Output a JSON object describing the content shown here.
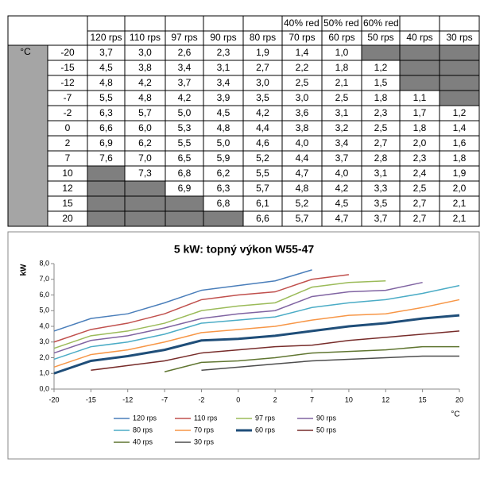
{
  "table": {
    "unit": "°C",
    "group_headers": [
      null,
      null,
      null,
      null,
      null,
      "40% red",
      "50% red",
      "60% red",
      null,
      null
    ],
    "columns": [
      "120 rps",
      "110 rps",
      "97 rps",
      "90 rps",
      "80 rps",
      "70 rps",
      "60 rps",
      "50 rps",
      "40 rps",
      "30 rps"
    ],
    "rows": [
      {
        "temp": "-20",
        "cells": [
          "3,7",
          "3,0",
          "2,6",
          "2,3",
          "1,9",
          "1,4",
          "1,0",
          null,
          null,
          null
        ]
      },
      {
        "temp": "-15",
        "cells": [
          "4,5",
          "3,8",
          "3,4",
          "3,1",
          "2,7",
          "2,2",
          "1,8",
          "1,2",
          null,
          null
        ]
      },
      {
        "temp": "-12",
        "cells": [
          "4,8",
          "4,2",
          "3,7",
          "3,4",
          "3,0",
          "2,5",
          "2,1",
          "1,5",
          null,
          null
        ]
      },
      {
        "temp": "-7",
        "cells": [
          "5,5",
          "4,8",
          "4,2",
          "3,9",
          "3,5",
          "3,0",
          "2,5",
          "1,8",
          "1,1",
          null
        ]
      },
      {
        "temp": "-2",
        "cells": [
          "6,3",
          "5,7",
          "5,0",
          "4,5",
          "4,2",
          "3,6",
          "3,1",
          "2,3",
          "1,7",
          "1,2"
        ]
      },
      {
        "temp": "0",
        "cells": [
          "6,6",
          "6,0",
          "5,3",
          "4,8",
          "4,4",
          "3,8",
          "3,2",
          "2,5",
          "1,8",
          "1,4"
        ]
      },
      {
        "temp": "2",
        "cells": [
          "6,9",
          "6,2",
          "5,5",
          "5,0",
          "4,6",
          "4,0",
          "3,4",
          "2,7",
          "2,0",
          "1,6"
        ]
      },
      {
        "temp": "7",
        "cells": [
          "7,6",
          "7,0",
          "6,5",
          "5,9",
          "5,2",
          "4,4",
          "3,7",
          "2,8",
          "2,3",
          "1,8"
        ]
      },
      {
        "temp": "10",
        "cells": [
          null,
          "7,3",
          "6,8",
          "6,2",
          "5,5",
          "4,7",
          "4,0",
          "3,1",
          "2,4",
          "1,9"
        ]
      },
      {
        "temp": "12",
        "cells": [
          null,
          null,
          "6,9",
          "6,3",
          "5,7",
          "4,8",
          "4,2",
          "3,3",
          "2,5",
          "2,0"
        ]
      },
      {
        "temp": "15",
        "cells": [
          null,
          null,
          null,
          "6,8",
          "6,1",
          "5,2",
          "4,5",
          "3,5",
          "2,7",
          "2,1"
        ]
      },
      {
        "temp": "20",
        "cells": [
          null,
          null,
          null,
          null,
          "6,6",
          "5,7",
          "4,7",
          "3,7",
          "2,7",
          "2,1"
        ]
      }
    ]
  },
  "chart_data": {
    "type": "line",
    "title": "5 kW: topný výkon W55-47",
    "y_label": "kW",
    "x_label": "°C",
    "categories": [
      "-20",
      "-15",
      "-12",
      "-7",
      "-2",
      "0",
      "2",
      "7",
      "10",
      "12",
      "15",
      "20"
    ],
    "ylim": [
      0,
      8
    ],
    "yticks": [
      {
        "value": 0,
        "label": "0,0"
      },
      {
        "value": 1,
        "label": "1,0"
      },
      {
        "value": 2,
        "label": "2,0"
      },
      {
        "value": 3,
        "label": "3,0"
      },
      {
        "value": 4,
        "label": "4,0"
      },
      {
        "value": 5,
        "label": "5,0"
      },
      {
        "value": 6,
        "label": "6,0"
      },
      {
        "value": 7,
        "label": "7,0"
      },
      {
        "value": 8,
        "label": "8,0"
      }
    ],
    "grid": false,
    "series": [
      {
        "name": "120 rps",
        "color": "#4a7eba",
        "values": [
          3.7,
          4.5,
          4.8,
          5.5,
          6.3,
          6.6,
          6.9,
          7.6,
          null,
          null,
          null,
          null
        ]
      },
      {
        "name": "110 rps",
        "color": "#c0504d",
        "values": [
          3.0,
          3.8,
          4.2,
          4.8,
          5.7,
          6.0,
          6.2,
          7.0,
          7.3,
          null,
          null,
          null
        ]
      },
      {
        "name": "97 rps",
        "color": "#9bbb59",
        "values": [
          2.6,
          3.4,
          3.7,
          4.2,
          5.0,
          5.3,
          5.5,
          6.5,
          6.8,
          6.9,
          null,
          null
        ]
      },
      {
        "name": "90 rps",
        "color": "#8064a2",
        "values": [
          2.3,
          3.1,
          3.4,
          3.9,
          4.5,
          4.8,
          5.0,
          5.9,
          6.2,
          6.3,
          6.8,
          null
        ]
      },
      {
        "name": "80 rps",
        "color": "#4bacc6",
        "values": [
          1.9,
          2.7,
          3.0,
          3.5,
          4.2,
          4.4,
          4.6,
          5.2,
          5.5,
          5.7,
          6.1,
          6.6
        ]
      },
      {
        "name": "70 rps",
        "color": "#f79646",
        "values": [
          1.4,
          2.2,
          2.5,
          3.0,
          3.6,
          3.8,
          4.0,
          4.4,
          4.7,
          4.8,
          5.2,
          5.7
        ]
      },
      {
        "name": "60 rps",
        "color": "#1f4e79",
        "values": [
          1.0,
          1.8,
          2.1,
          2.5,
          3.1,
          3.2,
          3.4,
          3.7,
          4.0,
          4.2,
          4.5,
          4.7
        ]
      },
      {
        "name": "50 rps",
        "color": "#772c2a",
        "values": [
          null,
          1.2,
          1.5,
          1.8,
          2.3,
          2.5,
          2.7,
          2.8,
          3.1,
          3.3,
          3.5,
          3.7
        ]
      },
      {
        "name": "40 rps",
        "color": "#5f7530",
        "values": [
          null,
          null,
          null,
          1.1,
          1.7,
          1.8,
          2.0,
          2.3,
          2.4,
          2.5,
          2.7,
          2.7
        ]
      },
      {
        "name": "30 rps",
        "color": "#4d4d4d",
        "values": [
          null,
          null,
          null,
          null,
          1.2,
          1.4,
          1.6,
          1.8,
          1.9,
          2.0,
          2.1,
          2.1
        ]
      }
    ]
  }
}
